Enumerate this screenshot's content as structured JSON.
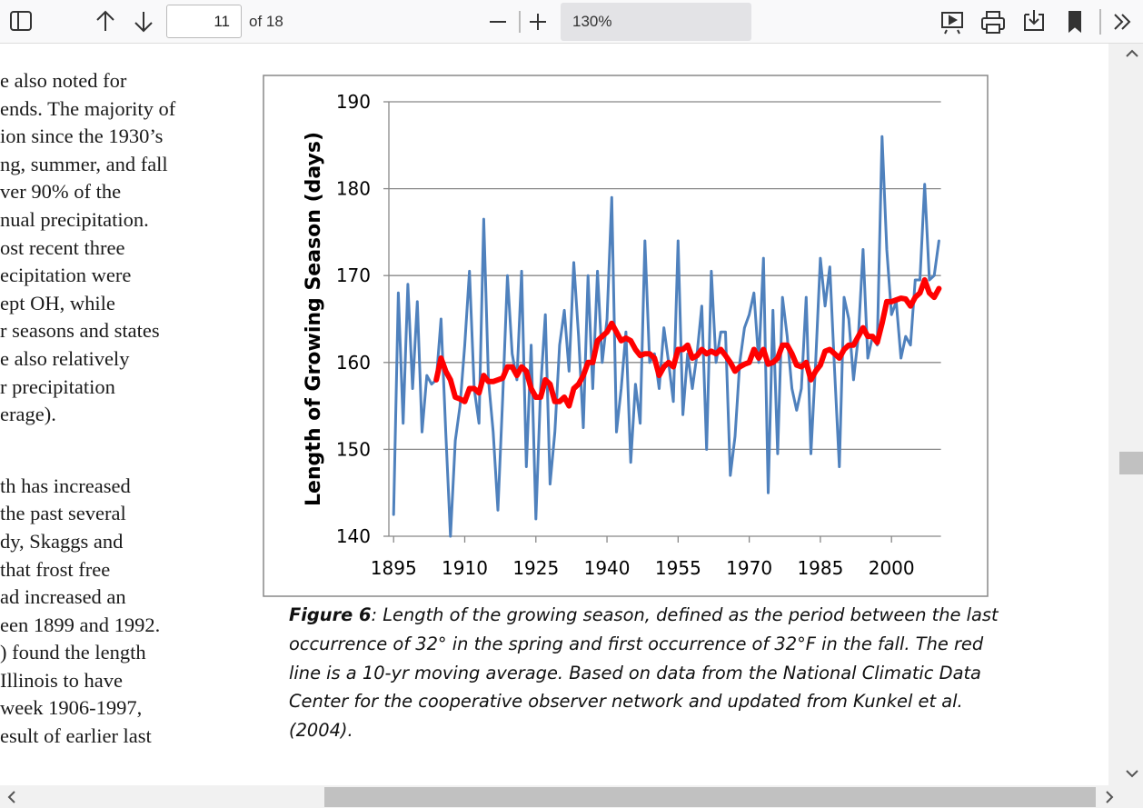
{
  "toolbar": {
    "page": "11",
    "page_count": "of 18",
    "zoom": "130%"
  },
  "body_text": {
    "paragraph_1": [
      "e also noted for",
      "ends. The majority of",
      "ion since the 1930’s",
      "ng, summer, and fall",
      "ver 90% of the",
      "nual precipitation.",
      "ost recent three",
      "ecipitation were",
      "ept OH, while",
      "r seasons and states",
      "e also relatively",
      "r precipitation",
      "erage)."
    ],
    "paragraph_2": [
      "th has increased",
      "the past several",
      "dy, Skaggs and",
      "that frost free",
      "ad increased an",
      "een 1899 and 1992.",
      ") found the length",
      "Illinois to have",
      "week 1906-1997,",
      "esult of earlier last"
    ]
  },
  "chart_data": {
    "type": "line",
    "y_axis_label": "Length of Growing Season (days)",
    "x": [
      1895,
      1896,
      1897,
      1898,
      1899,
      1900,
      1901,
      1902,
      1903,
      1904,
      1905,
      1906,
      1907,
      1908,
      1909,
      1910,
      1911,
      1912,
      1913,
      1914,
      1915,
      1916,
      1917,
      1918,
      1919,
      1920,
      1921,
      1922,
      1923,
      1924,
      1925,
      1926,
      1927,
      1928,
      1929,
      1930,
      1931,
      1932,
      1933,
      1934,
      1935,
      1936,
      1937,
      1938,
      1939,
      1940,
      1941,
      1942,
      1943,
      1944,
      1945,
      1946,
      1947,
      1948,
      1949,
      1950,
      1951,
      1952,
      1953,
      1954,
      1955,
      1956,
      1957,
      1958,
      1959,
      1960,
      1961,
      1962,
      1963,
      1964,
      1965,
      1966,
      1967,
      1968,
      1969,
      1970,
      1971,
      1972,
      1973,
      1974,
      1975,
      1976,
      1977,
      1978,
      1979,
      1980,
      1981,
      1982,
      1983,
      1984,
      1985,
      1986,
      1987,
      1988,
      1989,
      1990,
      1991,
      1992,
      1993,
      1994,
      1995,
      1996,
      1997,
      1998,
      1999,
      2000,
      2001,
      2002,
      2003,
      2004,
      2005,
      2006,
      2007,
      2008,
      2009,
      2010
    ],
    "series": [
      {
        "color": "#4f81bd",
        "width": 3,
        "values": [
          142.5,
          168,
          153,
          169,
          157,
          167,
          152,
          158.5,
          157.5,
          158,
          165,
          152,
          140,
          151,
          155,
          162,
          170.5,
          157,
          153,
          176.5,
          158,
          152,
          143,
          156,
          170,
          161,
          158,
          170.5,
          148,
          162,
          142,
          157,
          165.5,
          146,
          152,
          162,
          166,
          159,
          171.5,
          163,
          152.5,
          170,
          157,
          170.5,
          160,
          165,
          179,
          152,
          157,
          163.5,
          148.5,
          157.5,
          153,
          174,
          160,
          161,
          157,
          164,
          160,
          155.5,
          174,
          154,
          161,
          157,
          161,
          166.5,
          150,
          170.5,
          160,
          163.5,
          163.5,
          147,
          151.5,
          160,
          164,
          165.5,
          168,
          160,
          172,
          145,
          166,
          149.5,
          167.5,
          163,
          157,
          154.5,
          157,
          167.5,
          149.5,
          160,
          172,
          166.5,
          171,
          159,
          148,
          167.5,
          165,
          158,
          163,
          173,
          160.5,
          163,
          162,
          186,
          173,
          165.5,
          167,
          160.5,
          163,
          162,
          169.5,
          169.5,
          180.5,
          169.5,
          170,
          174
        ]
      },
      {
        "color": "#ff0000",
        "width": 6,
        "values": [
          null,
          null,
          null,
          null,
          null,
          null,
          null,
          null,
          null,
          158,
          160.5,
          159,
          158,
          156,
          155.8,
          155.5,
          157,
          157,
          156.5,
          158.5,
          157.8,
          157.8,
          158,
          158.2,
          159.5,
          159.5,
          158.5,
          159.5,
          159,
          157,
          156,
          156,
          158,
          157.5,
          155.5,
          155.5,
          156,
          155,
          157,
          157.5,
          158.5,
          160,
          160,
          162.5,
          163,
          163.5,
          164.5,
          163.5,
          162.5,
          162.8,
          162.5,
          161.5,
          160.8,
          161,
          161,
          160.5,
          158.5,
          159.5,
          160,
          159.5,
          161.5,
          161.5,
          162,
          160.5,
          160.8,
          161.5,
          161,
          161.3,
          161,
          161.5,
          160.8,
          160,
          159,
          159.5,
          159.8,
          160,
          161.5,
          160.5,
          161.5,
          159.8,
          160,
          160.5,
          162,
          162,
          161,
          159.7,
          159.5,
          160,
          158,
          159,
          159.7,
          161.3,
          161.5,
          161,
          160.5,
          161.5,
          162,
          162,
          163,
          164,
          163,
          163,
          162.3,
          164.5,
          167,
          167,
          167.2,
          167.4,
          167.3,
          166.5,
          167.5,
          168,
          169.5,
          168,
          167.5,
          168.5
        ]
      }
    ],
    "xlim": [
      1894,
      2011
    ],
    "xticks": [
      1895,
      1910,
      1925,
      1940,
      1955,
      1970,
      1985,
      2000
    ],
    "ylim": [
      140,
      190
    ],
    "yticks": [
      140,
      150,
      160,
      170,
      180,
      190
    ],
    "grid": true,
    "caption": {
      "label": "Figure 6",
      "text": ": Length of the growing season, defined as the period between the last occurrence of 32° in the spring and first occurrence of 32°F in the fall. The red line is a 10-yr moving average. Based on data from the National Climatic Data Center for the cooperative observer network and updated from Kunkel et al. (2004)."
    }
  }
}
